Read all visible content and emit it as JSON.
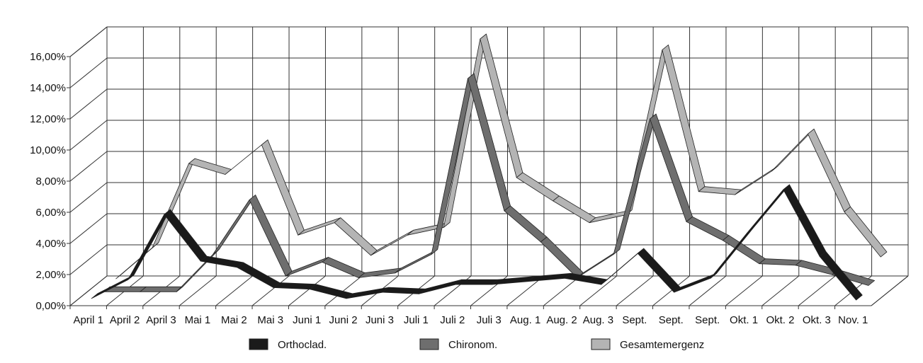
{
  "chart_data": {
    "type": "line",
    "style": "3d-ribbon",
    "categories": [
      "April 1",
      "April 2",
      "April 3",
      "Mai 1",
      "Mai 2",
      "Mai 3",
      "Juni 1",
      "Juni 2",
      "Juni 3",
      "Juli 1",
      "Juli 2",
      "Juli 3",
      "Aug. 1",
      "Aug. 2",
      "Aug. 3",
      "Sept.",
      "Sept.",
      "Sept.",
      "Okt. 1",
      "Okt. 2",
      "Okt. 3",
      "Nov. 1"
    ],
    "y_tick_labels": [
      "0,00%",
      "2,00%",
      "4,00%",
      "6,00%",
      "8,00%",
      "10,00%",
      "12,00%",
      "14,00%",
      "16,00%"
    ],
    "ylim": [
      0,
      16
    ],
    "grid": true,
    "legend_position": "bottom",
    "series": [
      {
        "name": "Orthoclad.",
        "color": "#1a1a1a",
        "values": [
          0.3,
          1.5,
          5.7,
          2.7,
          2.3,
          1.0,
          0.9,
          0.3,
          0.7,
          0.6,
          1.2,
          1.2,
          1.4,
          1.6,
          1.2,
          3.2,
          0.7,
          1.6,
          4.5,
          7.3,
          3.0,
          0.2
        ]
      },
      {
        "name": "Chironom.",
        "color": "#6e6e6e",
        "values": [
          0.1,
          0.1,
          0.1,
          2.5,
          6.0,
          1.1,
          2.0,
          1.0,
          1.3,
          2.5,
          13.8,
          5.3,
          3.3,
          1.0,
          2.5,
          11.2,
          4.6,
          3.4,
          1.9,
          1.8,
          1.2,
          0.5
        ]
      },
      {
        "name": "Gesamtemergenz",
        "color": "#b4b4b4",
        "values": [
          0.3,
          2.3,
          7.7,
          7.0,
          8.9,
          3.1,
          3.9,
          1.8,
          3.1,
          3.6,
          15.7,
          6.8,
          5.3,
          3.9,
          4.4,
          15.0,
          5.9,
          5.7,
          7.2,
          9.6,
          4.6,
          1.7
        ]
      }
    ]
  }
}
